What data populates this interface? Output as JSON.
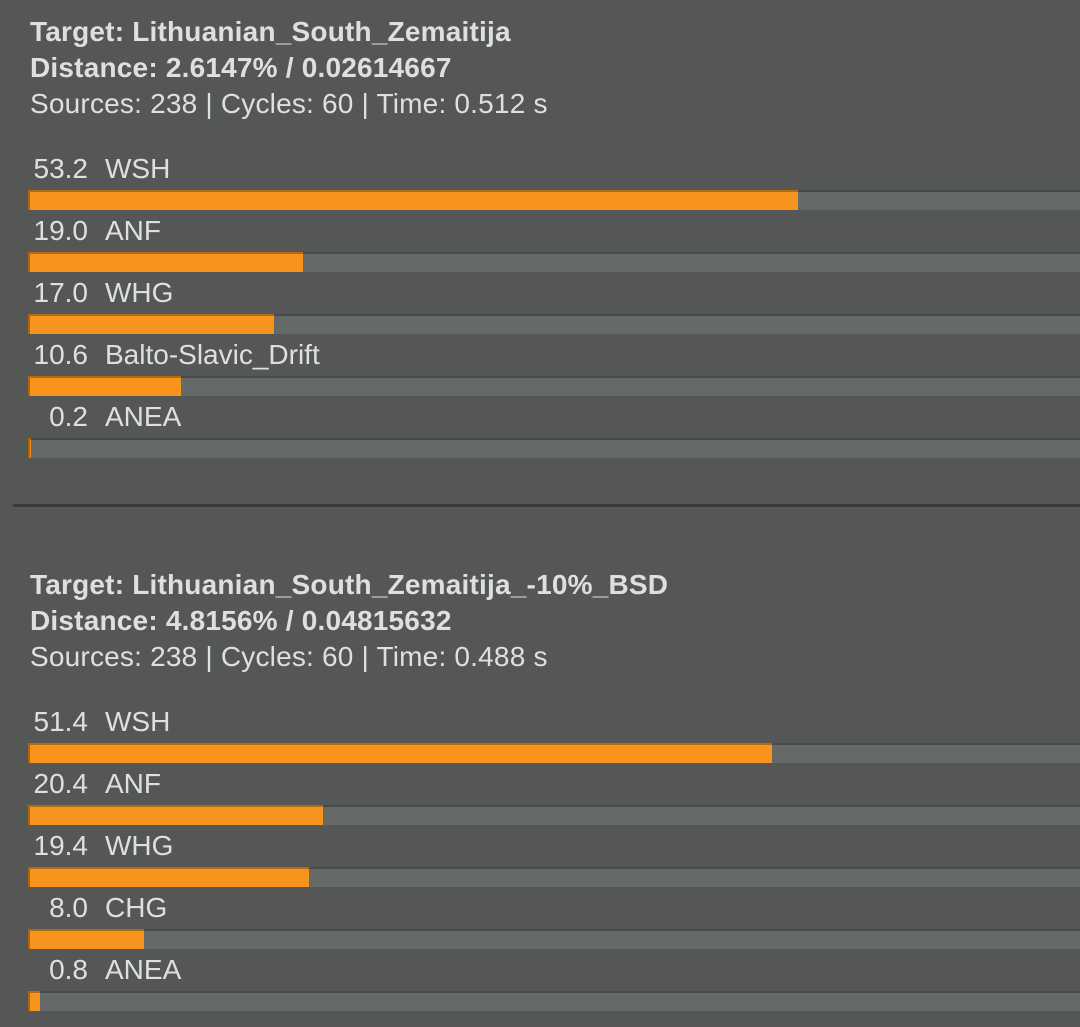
{
  "colors": {
    "background": "#545756",
    "track": "#656968",
    "bar": "#f7941e",
    "text": "#dee0df",
    "divider": "#3a3c3b"
  },
  "chart_data": [
    {
      "type": "bar",
      "orientation": "horizontal",
      "title": "Target: Lithuanian_South_Zemaitija",
      "subtitle": "Distance: 2.6147% / 0.02614667",
      "stats": "Sources: 238 | Cycles: 60 | Time: 0.512 s",
      "categories": [
        "WSH",
        "ANF",
        "WHG",
        "Balto-Slavic_Drift",
        "ANEA"
      ],
      "values": [
        53.2,
        19.0,
        17.0,
        10.6,
        0.2
      ],
      "unit": "%",
      "xlim": [
        0,
        72.7
      ],
      "grid": false,
      "legend": false,
      "bar_color": "#f7941e"
    },
    {
      "type": "bar",
      "orientation": "horizontal",
      "title": "Target: Lithuanian_South_Zemaitija_-10%_BSD",
      "subtitle": "Distance: 4.8156% / 0.04815632",
      "stats": "Sources: 238 | Cycles: 60 | Time: 0.488 s",
      "categories": [
        "WSH",
        "ANF",
        "WHG",
        "CHG",
        "ANEA"
      ],
      "values": [
        51.4,
        20.4,
        19.4,
        8.0,
        0.8
      ],
      "unit": "%",
      "xlim": [
        0,
        72.7
      ],
      "grid": false,
      "legend": false,
      "bar_color": "#f7941e"
    }
  ]
}
